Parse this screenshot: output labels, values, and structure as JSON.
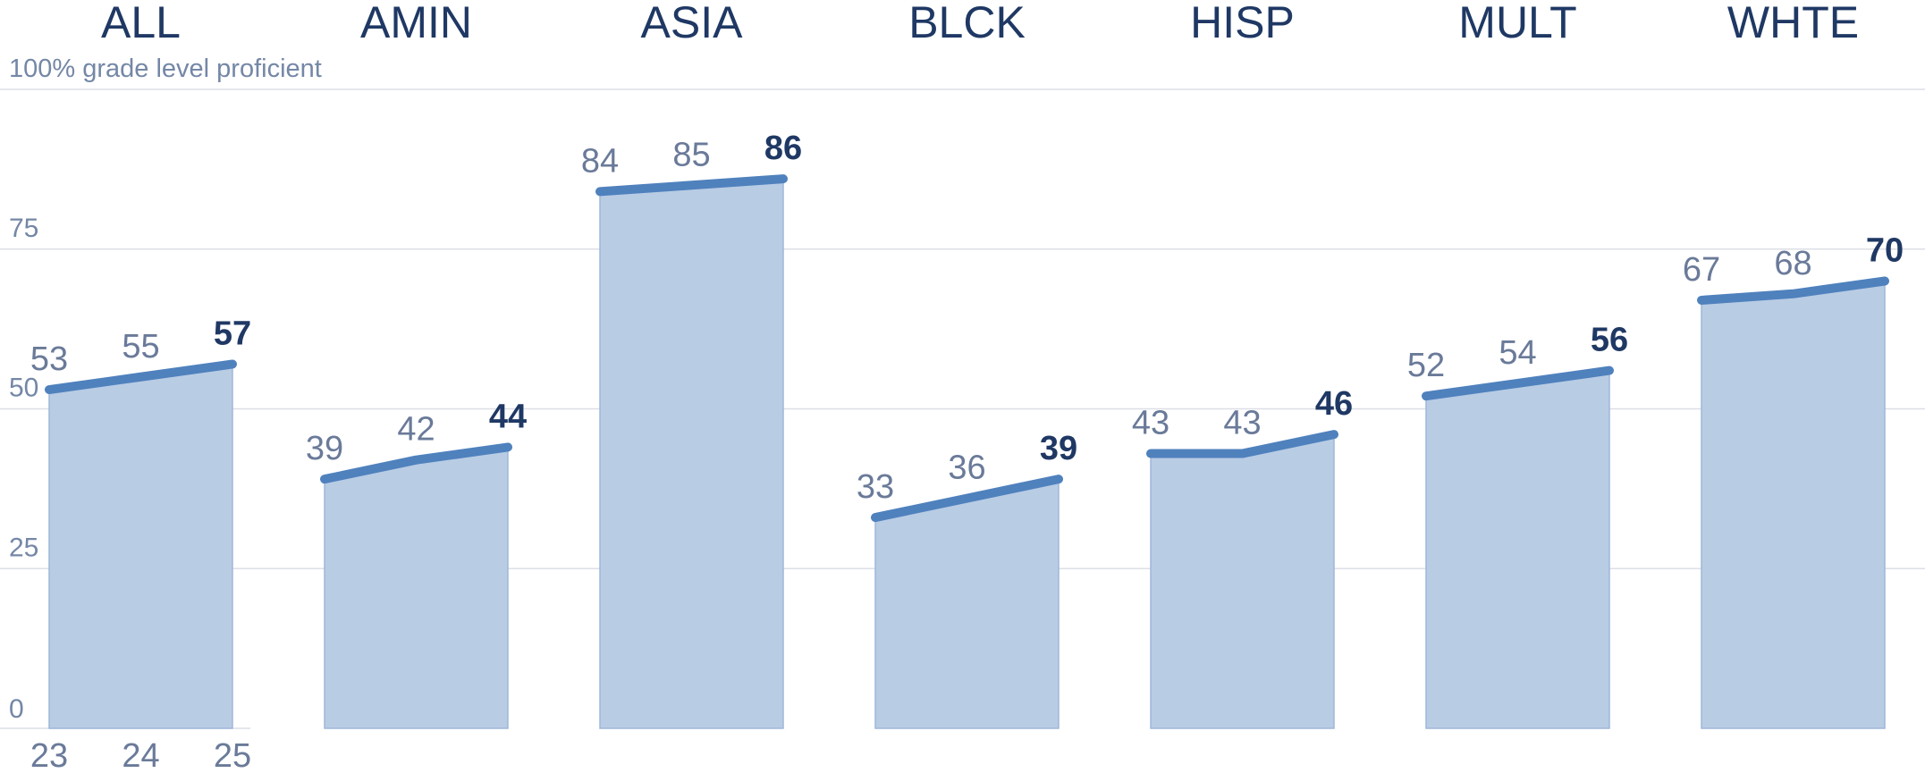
{
  "chart_data": {
    "type": "area",
    "x": [
      "23",
      "24",
      "25"
    ],
    "ylim": [
      0,
      100
    ],
    "yticks": [
      0,
      25,
      50,
      75,
      {
        "value": 100,
        "label": "100% grade level proficient"
      }
    ],
    "grid": true,
    "line_color": "#4f81bd",
    "fill_color": "#b8cce4",
    "series": [
      {
        "name": "ALL",
        "values": [
          53,
          55,
          57
        ]
      },
      {
        "name": "AMIN",
        "values": [
          39,
          42,
          44
        ]
      },
      {
        "name": "ASIA",
        "values": [
          84,
          85,
          86
        ]
      },
      {
        "name": "BLCK",
        "values": [
          33,
          36,
          39
        ]
      },
      {
        "name": "HISP",
        "values": [
          43,
          43,
          46
        ]
      },
      {
        "name": "MULT",
        "values": [
          52,
          54,
          56
        ]
      },
      {
        "name": "WHTE",
        "values": [
          67,
          68,
          70
        ]
      }
    ]
  }
}
